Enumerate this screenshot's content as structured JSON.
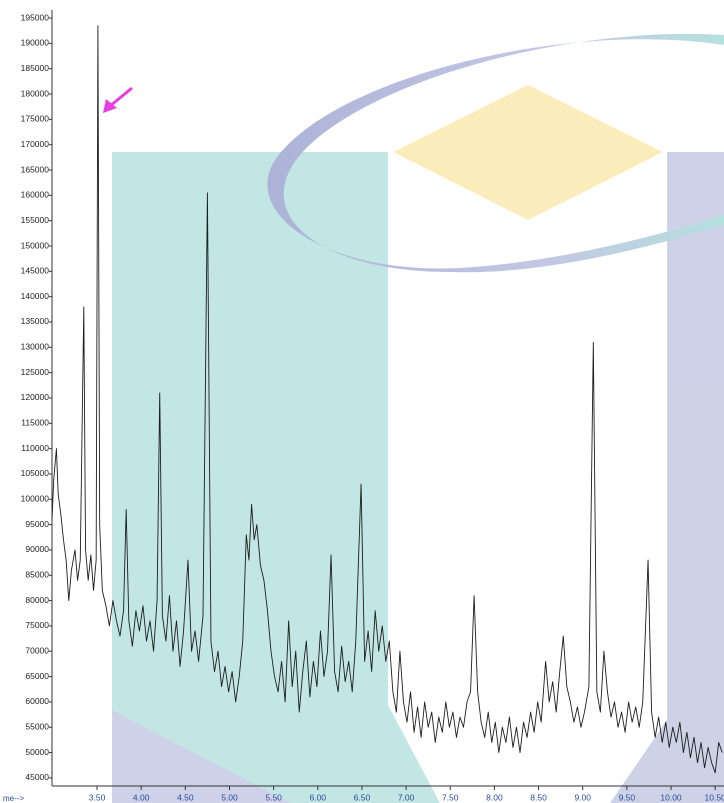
{
  "chart_data": {
    "type": "line",
    "x_label": "me-->",
    "color": "#1e1e1e",
    "xlim": [
      2.99,
      10.6
    ],
    "ylim": [
      43400,
      195800
    ],
    "xticks": [
      {
        "value": 3.5,
        "label": "3.50"
      },
      {
        "value": 4.0,
        "label": "4.00"
      },
      {
        "value": 4.5,
        "label": "4.50"
      },
      {
        "value": 5.0,
        "label": "5.00"
      },
      {
        "value": 5.5,
        "label": "5.50"
      },
      {
        "value": 6.0,
        "label": "6.00"
      },
      {
        "value": 6.5,
        "label": "6.50"
      },
      {
        "value": 7.0,
        "label": "7.00"
      },
      {
        "value": 7.5,
        "label": "7.50"
      },
      {
        "value": 8.0,
        "label": "8.00"
      },
      {
        "value": 8.5,
        "label": "8.50"
      },
      {
        "value": 9.0,
        "label": "9.00"
      },
      {
        "value": 9.5,
        "label": "9.50"
      },
      {
        "value": 10.0,
        "label": "10.00"
      },
      {
        "value": 10.5,
        "label": "10.50"
      }
    ],
    "yticks": [
      45000,
      50000,
      55000,
      60000,
      65000,
      70000,
      75000,
      80000,
      85000,
      90000,
      95000,
      100000,
      105000,
      110000,
      115000,
      120000,
      125000,
      130000,
      135000,
      140000,
      145000,
      150000,
      155000,
      160000,
      165000,
      170000,
      175000,
      180000,
      185000,
      190000,
      195000
    ],
    "x": [
      2.99,
      3.01,
      3.04,
      3.06,
      3.09,
      3.12,
      3.15,
      3.18,
      3.21,
      3.25,
      3.28,
      3.31,
      3.35,
      3.37,
      3.4,
      3.43,
      3.46,
      3.49,
      3.51,
      3.53,
      3.56,
      3.6,
      3.64,
      3.68,
      3.72,
      3.76,
      3.8,
      3.83,
      3.86,
      3.9,
      3.94,
      3.98,
      4.02,
      4.06,
      4.1,
      4.14,
      4.18,
      4.21,
      4.24,
      4.28,
      4.32,
      4.36,
      4.4,
      4.44,
      4.48,
      4.53,
      4.57,
      4.61,
      4.65,
      4.7,
      4.75,
      4.79,
      4.83,
      4.87,
      4.91,
      4.95,
      4.99,
      5.03,
      5.07,
      5.11,
      5.15,
      5.19,
      5.22,
      5.25,
      5.28,
      5.31,
      5.35,
      5.39,
      5.43,
      5.47,
      5.51,
      5.55,
      5.59,
      5.63,
      5.67,
      5.71,
      5.75,
      5.79,
      5.83,
      5.87,
      5.91,
      5.95,
      5.99,
      6.03,
      6.07,
      6.11,
      6.15,
      6.19,
      6.23,
      6.27,
      6.31,
      6.35,
      6.39,
      6.43,
      6.49,
      6.53,
      6.57,
      6.61,
      6.65,
      6.69,
      6.73,
      6.77,
      6.81,
      6.85,
      6.89,
      6.93,
      6.97,
      7.01,
      7.05,
      7.09,
      7.13,
      7.17,
      7.21,
      7.25,
      7.29,
      7.33,
      7.37,
      7.41,
      7.45,
      7.49,
      7.53,
      7.57,
      7.61,
      7.65,
      7.69,
      7.73,
      7.77,
      7.81,
      7.85,
      7.89,
      7.93,
      7.97,
      8.01,
      8.05,
      8.09,
      8.13,
      8.17,
      8.21,
      8.25,
      8.29,
      8.33,
      8.37,
      8.41,
      8.45,
      8.49,
      8.53,
      8.58,
      8.62,
      8.66,
      8.7,
      8.74,
      8.78,
      8.82,
      8.86,
      8.9,
      8.94,
      8.98,
      9.02,
      9.07,
      9.12,
      9.16,
      9.2,
      9.24,
      9.28,
      9.32,
      9.36,
      9.4,
      9.44,
      9.48,
      9.52,
      9.56,
      9.6,
      9.64,
      9.68,
      9.74,
      9.78,
      9.82,
      9.86,
      9.9,
      9.94,
      9.98,
      10.02,
      10.06,
      10.1,
      10.14,
      10.18,
      10.22,
      10.26,
      10.3,
      10.34,
      10.38,
      10.42,
      10.46,
      10.5,
      10.54,
      10.58
    ],
    "values": [
      96000,
      104000,
      110000,
      101000,
      97000,
      92000,
      88000,
      80000,
      86000,
      90000,
      84000,
      88000,
      138000,
      90000,
      84000,
      89000,
      82000,
      88000,
      193500,
      95000,
      82000,
      79000,
      75000,
      80000,
      76000,
      73000,
      78000,
      98000,
      76000,
      71000,
      78000,
      74000,
      79000,
      72000,
      76000,
      70000,
      80000,
      121000,
      77000,
      72000,
      81000,
      70000,
      76000,
      67000,
      74000,
      88000,
      70000,
      74000,
      68000,
      77000,
      160500,
      72000,
      66000,
      70000,
      63000,
      67000,
      62000,
      66000,
      60000,
      65000,
      72000,
      93000,
      88000,
      99000,
      92000,
      95000,
      87000,
      84000,
      78000,
      70000,
      65000,
      62000,
      68000,
      60000,
      76000,
      63000,
      70000,
      58000,
      66000,
      72000,
      61000,
      68000,
      63000,
      74000,
      65000,
      70000,
      89000,
      66000,
      62000,
      71000,
      64000,
      68000,
      62000,
      72000,
      103000,
      68000,
      74000,
      66000,
      78000,
      70000,
      75000,
      68000,
      72000,
      62000,
      58000,
      70000,
      60000,
      56000,
      62000,
      54000,
      59000,
      53000,
      60000,
      55000,
      58000,
      52000,
      57000,
      54000,
      60000,
      55000,
      58000,
      53000,
      57000,
      55000,
      60000,
      62000,
      81000,
      62000,
      56000,
      53000,
      58000,
      52000,
      56000,
      50000,
      55000,
      52000,
      57000,
      51000,
      55000,
      50000,
      56000,
      53000,
      58000,
      54000,
      60000,
      56000,
      68000,
      60000,
      64000,
      58000,
      66000,
      73000,
      63000,
      60000,
      56000,
      59000,
      55000,
      58000,
      63000,
      131000,
      62000,
      58000,
      70000,
      62000,
      57000,
      60000,
      55000,
      58000,
      54000,
      60000,
      56000,
      59000,
      55000,
      60000,
      88000,
      58000,
      53000,
      57000,
      52000,
      56000,
      51000,
      55000,
      52000,
      56000,
      50000,
      54000,
      49000,
      53000,
      48000,
      52000,
      47000,
      51000,
      48000,
      46000,
      52000,
      50000
    ]
  }
}
